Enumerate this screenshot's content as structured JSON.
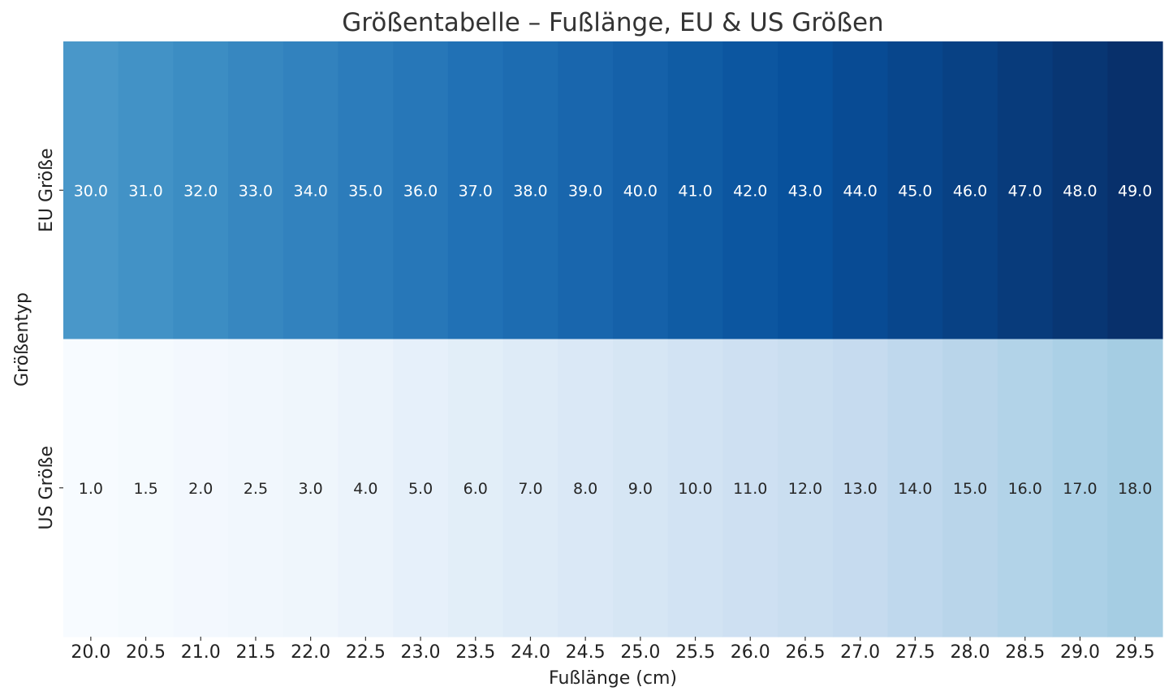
{
  "chart_data": {
    "type": "heatmap",
    "title": "Größentabelle – Fußlänge, EU & US Größen",
    "xlabel": "Fußlänge (cm)",
    "ylabel": "Größentyp",
    "x": [
      "20.0",
      "20.5",
      "21.0",
      "21.5",
      "22.0",
      "22.5",
      "23.0",
      "23.5",
      "24.0",
      "24.5",
      "25.0",
      "25.5",
      "26.0",
      "26.5",
      "27.0",
      "27.5",
      "28.0",
      "28.5",
      "29.0",
      "29.5"
    ],
    "rows": [
      "EU Größe",
      "US Größe"
    ],
    "values": [
      [
        30.0,
        31.0,
        32.0,
        33.0,
        34.0,
        35.0,
        36.0,
        37.0,
        38.0,
        39.0,
        40.0,
        41.0,
        42.0,
        43.0,
        44.0,
        45.0,
        46.0,
        47.0,
        48.0,
        49.0
      ],
      [
        1.0,
        1.5,
        2.0,
        2.5,
        3.0,
        4.0,
        5.0,
        6.0,
        7.0,
        8.0,
        9.0,
        10.0,
        11.0,
        12.0,
        13.0,
        14.0,
        15.0,
        16.0,
        17.0,
        18.0
      ]
    ],
    "colormap": "Blues",
    "vmin": 1.0,
    "vmax": 49.0,
    "annotation_decimals": 1,
    "colorbar": false
  }
}
